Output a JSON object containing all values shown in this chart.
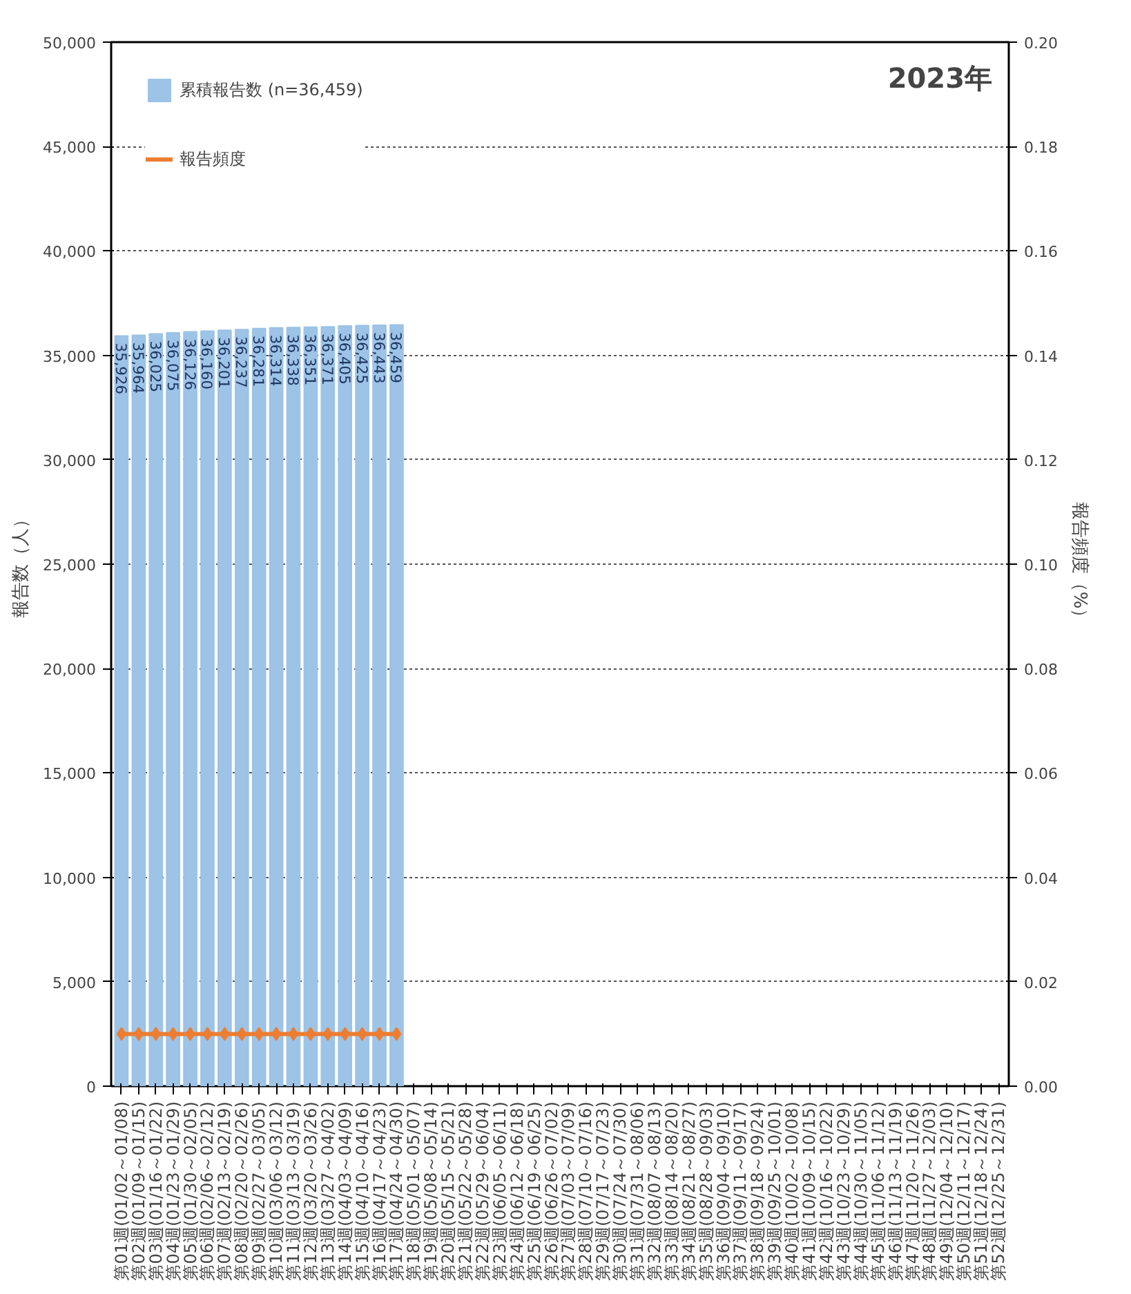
{
  "chart_data": {
    "type": "bar",
    "title": "2023年",
    "ylabel": "報告数（人）",
    "y2label": "報告頻度（%）",
    "categories": [
      "第01週(01/02～01/08)",
      "第02週(01/09～01/15)",
      "第03週(01/16～01/22)",
      "第04週(01/23～01/29)",
      "第05週(01/30～02/05)",
      "第06週(02/06～02/12)",
      "第07週(02/13～02/19)",
      "第08週(02/20～02/26)",
      "第09週(02/27～03/05)",
      "第10週(03/06～03/12)",
      "第11週(03/13～03/19)",
      "第12週(03/20～03/26)",
      "第13週(03/27～04/02)",
      "第14週(04/03～04/09)",
      "第15週(04/10～04/16)",
      "第16週(04/17～04/23)",
      "第17週(04/24～04/30)",
      "第18週(05/01～05/07)",
      "第19週(05/08～05/14)",
      "第20週(05/15～05/21)",
      "第21週(05/22～05/28)",
      "第22週(05/29～06/04)",
      "第23週(06/05～06/11)",
      "第24週(06/12～06/18)",
      "第25週(06/19～06/25)",
      "第26週(06/26～07/02)",
      "第27週(07/03～07/09)",
      "第28週(07/10～07/16)",
      "第29週(07/17～07/23)",
      "第30週(07/24～07/30)",
      "第31週(07/31～08/06)",
      "第32週(08/07～08/13)",
      "第33週(08/14～08/20)",
      "第34週(08/21～08/27)",
      "第35週(08/28～09/03)",
      "第36週(09/04～09/10)",
      "第37週(09/11～09/17)",
      "第38週(09/18～09/24)",
      "第39週(09/25～10/01)",
      "第40週(10/02～10/08)",
      "第41週(10/09～10/15)",
      "第42週(10/16～10/22)",
      "第43週(10/23～10/29)",
      "第44週(10/30～11/05)",
      "第45週(11/06～11/12)",
      "第46週(11/13～11/19)",
      "第47週(11/20～11/26)",
      "第48週(11/27～12/03)",
      "第49週(12/04～12/10)",
      "第50週(12/11～12/17)",
      "第51週(12/18～12/24)",
      "第52週(12/25～12/31)"
    ],
    "series": [
      {
        "name": "累積報告数 (n=36,459)",
        "color": "#9dc3e6",
        "value_labels": [
          "35,926",
          "35,964",
          "36,025",
          "36,075",
          "36,126",
          "36,160",
          "36,201",
          "36,237",
          "36,281",
          "36,314",
          "36,338",
          "36,351",
          "36,371",
          "36,405",
          "36,425",
          "36,443",
          "36,459",
          null,
          null,
          null,
          null,
          null,
          null,
          null,
          null,
          null,
          null,
          null,
          null,
          null,
          null,
          null,
          null,
          null,
          null,
          null,
          null,
          null,
          null,
          null,
          null,
          null,
          null,
          null,
          null,
          null,
          null,
          null,
          null,
          null,
          null,
          null
        ],
        "values": [
          35926,
          35964,
          36025,
          36075,
          36126,
          36160,
          36201,
          36237,
          36281,
          36314,
          36338,
          36351,
          36371,
          36405,
          36425,
          36443,
          36459,
          null,
          null,
          null,
          null,
          null,
          null,
          null,
          null,
          null,
          null,
          null,
          null,
          null,
          null,
          null,
          null,
          null,
          null,
          null,
          null,
          null,
          null,
          null,
          null,
          null,
          null,
          null,
          null,
          null,
          null,
          null,
          null,
          null,
          null,
          null
        ]
      },
      {
        "name": "報告頻度",
        "type": "line",
        "axis": "y2",
        "color": "#ed7d31",
        "marker": "diamond",
        "values": [
          0.01,
          0.01,
          0.01,
          0.01,
          0.01,
          0.01,
          0.01,
          0.01,
          0.01,
          0.01,
          0.01,
          0.01,
          0.01,
          0.01,
          0.01,
          0.01,
          0.01,
          null,
          null,
          null,
          null,
          null,
          null,
          null,
          null,
          null,
          null,
          null,
          null,
          null,
          null,
          null,
          null,
          null,
          null,
          null,
          null,
          null,
          null,
          null,
          null,
          null,
          null,
          null,
          null,
          null,
          null,
          null,
          null,
          null,
          null,
          null
        ]
      }
    ],
    "ylim": [
      0,
      50000
    ],
    "yticks": [
      0,
      {
        "value": 5000,
        "label": "5,000"
      },
      {
        "value": 10000,
        "label": "10,000"
      },
      {
        "value": 15000,
        "label": "15,000"
      },
      {
        "value": 20000,
        "label": "20,000"
      },
      {
        "value": 25000,
        "label": "25,000"
      },
      {
        "value": 30000,
        "label": "30,000"
      },
      {
        "value": 35000,
        "label": "35,000"
      },
      {
        "value": 40000,
        "label": "40,000"
      },
      {
        "value": 45000,
        "label": "45,000"
      },
      {
        "value": 50000,
        "label": "50,000"
      }
    ],
    "y2lim": [
      0,
      0.2
    ],
    "y2ticks": [
      {
        "value": 0,
        "label": "0.00"
      },
      {
        "value": 0.02,
        "label": "0.02"
      },
      {
        "value": 0.04,
        "label": "0.04"
      },
      {
        "value": 0.06,
        "label": "0.06"
      },
      {
        "value": 0.08,
        "label": "0.08"
      },
      {
        "value": 0.1,
        "label": "0.10"
      },
      {
        "value": 0.12,
        "label": "0.12"
      },
      {
        "value": 0.14,
        "label": "0.14"
      },
      {
        "value": 0.16,
        "label": "0.16"
      },
      {
        "value": 0.18,
        "label": "0.18"
      },
      {
        "value": 0.2,
        "label": "0.20"
      }
    ],
    "grid": "y",
    "legend": "top left"
  }
}
